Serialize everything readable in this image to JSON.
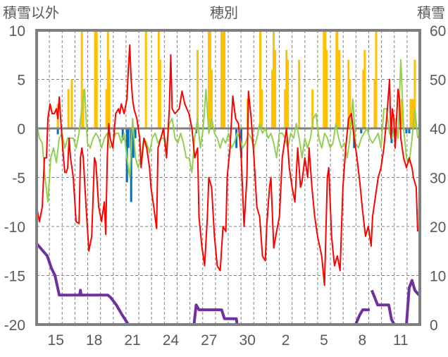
{
  "chart_data": {
    "type": "line",
    "title": "穂別",
    "ylabel_left": "積雪以外",
    "ylabel_right": "積雪",
    "ylim_left": [
      -20,
      10
    ],
    "ylim_right": [
      0,
      60
    ],
    "yticks_left": [
      "10",
      "5",
      "0",
      "-5",
      "-10",
      "-15",
      "-20"
    ],
    "yticks_left_values": [
      10,
      5,
      0,
      -5,
      -10,
      -15,
      -20
    ],
    "yticks_right": [
      "60",
      "50",
      "40",
      "30",
      "20",
      "10",
      "0"
    ],
    "yticks_right_values": [
      60,
      50,
      40,
      30,
      20,
      10,
      0
    ],
    "xlim_days": [
      0,
      30
    ],
    "xtick_labels": [
      "15",
      "18",
      "21",
      "24",
      "27",
      "30",
      "2",
      "5",
      "8",
      "11"
    ],
    "xtick_positions_days": [
      1.5,
      4.5,
      7.5,
      10.5,
      13.5,
      16.5,
      19.5,
      22.5,
      25.5,
      28.5
    ],
    "grid": "dashed, daily vertical + every 5 horizontal",
    "colors": {
      "red": "#ff0000",
      "green": "#92d050",
      "orange": "#ffc000",
      "blue": "#0070c0",
      "purple": "#7030a0",
      "frame": "#808080",
      "grid": "#808080"
    },
    "series": [
      {
        "name": "orange-bars",
        "kind": "bar",
        "axis": "left",
        "color": "#ffc000",
        "points": [
          [
            1.66,
            2.5
          ],
          [
            2.49,
            4
          ],
          [
            2.76,
            5
          ],
          [
            3.54,
            10
          ],
          [
            3.65,
            4
          ],
          [
            4.58,
            10
          ],
          [
            4.7,
            10
          ],
          [
            5.47,
            4
          ],
          [
            5.58,
            10
          ],
          [
            5.69,
            7
          ],
          [
            8.56,
            10
          ],
          [
            9.56,
            10
          ],
          [
            9.67,
            7
          ],
          [
            12.6,
            8
          ],
          [
            13.48,
            10
          ],
          [
            13.59,
            10
          ],
          [
            13.7,
            6
          ],
          [
            14.48,
            10
          ],
          [
            14.59,
            10
          ],
          [
            14.7,
            10
          ],
          [
            16.52,
            3
          ],
          [
            17.51,
            10
          ],
          [
            17.62,
            4
          ],
          [
            18.45,
            6
          ],
          [
            18.56,
            10
          ],
          [
            18.67,
            8
          ],
          [
            19.45,
            4
          ],
          [
            19.56,
            8
          ],
          [
            19.67,
            7
          ],
          [
            20.55,
            7
          ],
          [
            21.6,
            4
          ],
          [
            22.49,
            10
          ],
          [
            22.6,
            10
          ],
          [
            22.71,
            8
          ],
          [
            23.48,
            10
          ],
          [
            23.54,
            10
          ],
          [
            23.7,
            8
          ],
          [
            24.42,
            7
          ],
          [
            24.53,
            5
          ],
          [
            25.58,
            6
          ],
          [
            25.69,
            8
          ],
          [
            26.47,
            5
          ],
          [
            26.58,
            10
          ],
          [
            28.57,
            3
          ],
          [
            29.28,
            3
          ],
          [
            29.45,
            3
          ],
          [
            29.61,
            7
          ]
        ]
      },
      {
        "name": "blue-bars",
        "kind": "bar",
        "axis": "left",
        "color": "#0070c0",
        "points": [
          [
            1.66,
            -0.6
          ],
          [
            6.74,
            -1.2
          ],
          [
            7.07,
            -5.5
          ],
          [
            7.18,
            -2
          ],
          [
            7.4,
            -7.5
          ],
          [
            7.57,
            -3
          ],
          [
            7.73,
            -1
          ],
          [
            12.49,
            -0.5
          ],
          [
            15.64,
            -2
          ],
          [
            16.02,
            -3
          ],
          [
            24.86,
            -2
          ],
          [
            25.41,
            -0.5
          ],
          [
            27.79,
            -1.5
          ],
          [
            28.07,
            -0.5
          ],
          [
            28.95,
            -0.5
          ],
          [
            29.17,
            -0.5
          ]
        ]
      },
      {
        "name": "green-line",
        "kind": "line",
        "axis": "left",
        "color": "#92d050",
        "x_start": 0,
        "x_step": 0.221,
        "values": [
          0.5,
          -1,
          -1.5,
          -5,
          -7.5,
          -3,
          -2,
          -3.5,
          -1,
          -0.5,
          -2,
          -1,
          -1,
          -1,
          -2,
          -0.5,
          2,
          4,
          -1.5,
          -2,
          -1,
          -0.5,
          -1,
          -2,
          -1,
          -0.5,
          -2,
          -1.5,
          -0.5,
          -0.5,
          -1.5,
          -0.5,
          -3,
          -5,
          1,
          -3,
          -4,
          -3,
          -1,
          -1.5,
          -2.5,
          -1,
          -0.5,
          -1.5,
          -1,
          -1,
          -2,
          0.5,
          1,
          -1,
          -1.5,
          -0.5,
          -1.5,
          -3,
          -3,
          -4.5,
          -1,
          1,
          -2,
          0,
          4,
          -0.5,
          1,
          -0.5,
          -1,
          -2,
          -1,
          -1.5,
          -0.5,
          -2,
          -1.5,
          -0.5,
          -1,
          -2,
          -1.5,
          -0.5,
          -1,
          -2,
          -1,
          0.5,
          -0.5,
          0,
          -1,
          -0.5,
          -1.5,
          -3,
          -0.5,
          -0.5,
          -1,
          -2,
          -0.5,
          -1,
          0.5,
          -1,
          -3,
          -1,
          -2,
          -1,
          1,
          1.5,
          -1,
          -2,
          -0.5,
          -1,
          -2,
          -1.5,
          0.5,
          -1,
          -2,
          -1.5,
          -3,
          -1,
          3,
          -1.5,
          -2,
          -1,
          -0.5,
          0,
          -1,
          -1.5,
          -1,
          -0.5,
          -2,
          2,
          2,
          -0.5,
          -1,
          1,
          -1,
          7,
          0,
          -3,
          -3.5,
          -1,
          2,
          -1
        ]
      },
      {
        "name": "red-line",
        "kind": "line",
        "axis": "left",
        "color": "#ff0000",
        "points": [
          [
            0,
            -8
          ],
          [
            0.22,
            -9.5
          ],
          [
            0.44,
            -8
          ],
          [
            0.61,
            -3
          ],
          [
            0.77,
            -3
          ],
          [
            0.88,
            1
          ],
          [
            1.05,
            2.5
          ],
          [
            1.22,
            1.5
          ],
          [
            1.38,
            1.5
          ],
          [
            1.55,
            2
          ],
          [
            1.66,
            1
          ],
          [
            1.77,
            3.2
          ],
          [
            1.88,
            1
          ],
          [
            1.99,
            -1
          ],
          [
            2.1,
            -3
          ],
          [
            2.21,
            -4.5
          ],
          [
            2.32,
            -4.5
          ],
          [
            2.43,
            -4
          ],
          [
            2.54,
            -1
          ],
          [
            2.65,
            -3
          ],
          [
            2.87,
            -5
          ],
          [
            3.09,
            -9.5
          ],
          [
            3.32,
            -9.7
          ],
          [
            3.43,
            -3
          ],
          [
            3.54,
            -2
          ],
          [
            3.65,
            -3
          ],
          [
            3.87,
            -8
          ],
          [
            4.09,
            -12.5
          ],
          [
            4.31,
            -11
          ],
          [
            4.53,
            -3
          ],
          [
            4.64,
            -3.5
          ],
          [
            4.86,
            -8
          ],
          [
            5.08,
            -9.5
          ],
          [
            5.3,
            -7.5
          ],
          [
            5.41,
            -10.8
          ],
          [
            5.53,
            -3
          ],
          [
            5.64,
            0.5
          ],
          [
            5.75,
            -1
          ],
          [
            5.97,
            -2
          ],
          [
            6.19,
            1.5
          ],
          [
            6.41,
            2
          ],
          [
            6.52,
            1.5
          ],
          [
            6.63,
            2.5
          ],
          [
            6.85,
            1.5
          ],
          [
            7.07,
            3
          ],
          [
            7.18,
            6
          ],
          [
            7.29,
            8.5
          ],
          [
            7.4,
            5
          ],
          [
            7.51,
            3
          ],
          [
            7.62,
            2
          ],
          [
            7.85,
            1
          ],
          [
            8.07,
            -1
          ],
          [
            8.18,
            -4
          ],
          [
            8.4,
            -1
          ],
          [
            8.62,
            -2
          ],
          [
            8.84,
            -4
          ],
          [
            8.95,
            -6
          ],
          [
            9.17,
            -8
          ],
          [
            9.39,
            -10.2
          ],
          [
            9.5,
            -2
          ],
          [
            9.72,
            -1
          ],
          [
            9.94,
            0
          ],
          [
            10.17,
            -3
          ],
          [
            10.39,
            2
          ],
          [
            10.5,
            7.5
          ],
          [
            10.61,
            2
          ],
          [
            10.83,
            1.5
          ],
          [
            11.16,
            2
          ],
          [
            11.38,
            3.8
          ],
          [
            11.6,
            2.5
          ],
          [
            11.93,
            1.5
          ],
          [
            12.16,
            0
          ],
          [
            12.38,
            -3
          ],
          [
            12.6,
            -2
          ],
          [
            12.71,
            -9
          ],
          [
            12.93,
            -12
          ],
          [
            13.15,
            -14
          ],
          [
            13.37,
            -9
          ],
          [
            13.48,
            -5
          ],
          [
            13.7,
            -6
          ],
          [
            13.92,
            -11
          ],
          [
            14.14,
            -14
          ],
          [
            14.37,
            -14.5
          ],
          [
            14.59,
            -10
          ],
          [
            14.81,
            -10.5
          ],
          [
            14.92,
            -5
          ],
          [
            15.14,
            -2
          ],
          [
            15.36,
            3.3
          ],
          [
            15.58,
            1
          ],
          [
            15.8,
            0.5
          ],
          [
            16.02,
            -3
          ],
          [
            16.24,
            -10
          ],
          [
            16.46,
            -5
          ],
          [
            16.58,
            3.8
          ],
          [
            16.8,
            1
          ],
          [
            17.02,
            -3
          ],
          [
            17.24,
            -8
          ],
          [
            17.46,
            -9
          ],
          [
            17.68,
            -13
          ],
          [
            17.9,
            -13.5
          ],
          [
            18.01,
            -10
          ],
          [
            18.23,
            -6
          ],
          [
            18.34,
            -5
          ],
          [
            18.56,
            -12.2
          ],
          [
            18.79,
            -10.5
          ],
          [
            19.01,
            -9
          ],
          [
            19.23,
            -3
          ],
          [
            19.45,
            -1
          ],
          [
            19.56,
            0
          ],
          [
            19.78,
            -4
          ],
          [
            20,
            -6
          ],
          [
            20.22,
            -7.5
          ],
          [
            20.44,
            -2
          ],
          [
            20.66,
            -6
          ],
          [
            20.77,
            -5.5
          ],
          [
            21,
            -3
          ],
          [
            21.22,
            -5
          ],
          [
            21.33,
            -2
          ],
          [
            21.55,
            -6
          ],
          [
            21.77,
            -9
          ],
          [
            21.99,
            -11
          ],
          [
            22.32,
            -13
          ],
          [
            22.54,
            -16
          ],
          [
            22.76,
            -5
          ],
          [
            22.87,
            -4
          ],
          [
            23.09,
            -11
          ],
          [
            23.32,
            -14
          ],
          [
            23.54,
            -13
          ],
          [
            23.76,
            -14.5
          ],
          [
            23.98,
            -6
          ],
          [
            24.2,
            -2
          ],
          [
            24.42,
            1
          ],
          [
            24.64,
            1.5
          ],
          [
            24.86,
            -1
          ],
          [
            25.08,
            -3
          ],
          [
            25.3,
            -5.5
          ],
          [
            25.53,
            -8.5
          ],
          [
            25.75,
            -11
          ],
          [
            25.97,
            -10
          ],
          [
            26.19,
            -12
          ],
          [
            26.3,
            -9
          ],
          [
            26.52,
            -7
          ],
          [
            26.74,
            -5
          ],
          [
            26.96,
            -4
          ],
          [
            27.18,
            -2
          ],
          [
            27.4,
            1
          ],
          [
            27.63,
            5
          ],
          [
            27.74,
            -1
          ],
          [
            27.85,
            2
          ],
          [
            27.96,
            1
          ],
          [
            28.07,
            -2
          ],
          [
            28.29,
            4
          ],
          [
            28.4,
            3
          ],
          [
            28.51,
            -1
          ],
          [
            28.73,
            -3
          ],
          [
            28.95,
            -4
          ],
          [
            29.17,
            -3
          ],
          [
            29.39,
            -4
          ],
          [
            29.5,
            -5
          ],
          [
            29.72,
            -6
          ],
          [
            29.83,
            -10.5
          ]
        ]
      },
      {
        "name": "purple-snow-depth",
        "kind": "line",
        "axis": "right",
        "color": "#7030a0",
        "points": [
          [
            0,
            16.5
          ],
          [
            0.17,
            16
          ],
          [
            0.5,
            15
          ],
          [
            0.83,
            14
          ],
          [
            1.16,
            11.5
          ],
          [
            1.44,
            10
          ],
          [
            1.77,
            6
          ],
          [
            3.37,
            6
          ],
          [
            3.43,
            7
          ],
          [
            3.48,
            6
          ],
          [
            5.58,
            6
          ],
          [
            5.8,
            5.5
          ],
          [
            6.24,
            4
          ],
          [
            6.69,
            2
          ],
          [
            7.18,
            0
          ],
          [
            12.32,
            0
          ],
          [
            12.49,
            4
          ],
          [
            12.71,
            3
          ],
          [
            14.48,
            3
          ],
          [
            14.7,
            1.2
          ],
          [
            15.64,
            1.2
          ],
          [
            15.69,
            0
          ],
          [
            24.97,
            0
          ],
          [
            25.3,
            2
          ],
          [
            25.53,
            3
          ],
          [
            26.08,
            3
          ],
          null,
          [
            26.24,
            7
          ],
          [
            26.47,
            5.5
          ],
          [
            26.69,
            4
          ],
          [
            27.57,
            4
          ],
          [
            27.79,
            1
          ],
          [
            28.01,
            0
          ],
          null,
          [
            28.45,
            0
          ],
          [
            28.95,
            0
          ],
          [
            29.17,
            7.5
          ],
          [
            29.39,
            9
          ],
          [
            29.61,
            7
          ],
          [
            29.94,
            6
          ]
        ]
      }
    ]
  }
}
